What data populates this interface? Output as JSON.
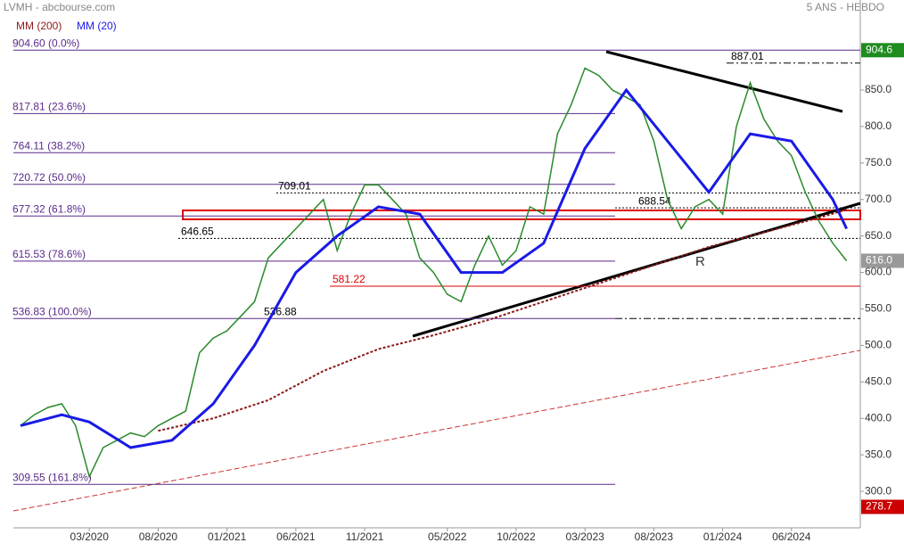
{
  "chart_data": {
    "type": "line",
    "title": "LVMH - abcbourse.com",
    "subtitle": "5 ANS - HEBDO",
    "xlim": [
      "2019-10",
      "2024-11"
    ],
    "ylim": [
      250,
      973.4
    ],
    "xticks": [
      {
        "value": "2020-03",
        "label": "03/2020"
      },
      {
        "value": "2020-08",
        "label": "08/2020"
      },
      {
        "value": "2021-01",
        "label": "01/2021"
      },
      {
        "value": "2021-06",
        "label": "06/2021"
      },
      {
        "value": "2021-11",
        "label": "11/2021"
      },
      {
        "value": "2022-05",
        "label": "05/2022"
      },
      {
        "value": "2022-10",
        "label": "10/2022"
      },
      {
        "value": "2023-03",
        "label": "03/2023"
      },
      {
        "value": "2023-08",
        "label": "08/2023"
      },
      {
        "value": "2024-01",
        "label": "01/2024"
      },
      {
        "value": "2024-06",
        "label": "06/2024"
      }
    ],
    "yticks": [
      {
        "value": 300,
        "label": "300.0"
      },
      {
        "value": 350,
        "label": "350.0"
      },
      {
        "value": 400,
        "label": "400.0"
      },
      {
        "value": 450,
        "label": "450.0"
      },
      {
        "value": 500,
        "label": "500.0"
      },
      {
        "value": 550,
        "label": "550.0"
      },
      {
        "value": 600,
        "label": "600.0"
      },
      {
        "value": 650,
        "label": "650.0"
      },
      {
        "value": 700,
        "label": "700.0"
      },
      {
        "value": 750,
        "label": "750.0"
      },
      {
        "value": 800,
        "label": "800.0"
      },
      {
        "value": 850,
        "label": "850.0"
      }
    ],
    "series": [
      {
        "name": "LVMH",
        "color": "#2a8a2a",
        "x": [
          "2019-10",
          "2019-11",
          "2019-12",
          "2020-01",
          "2020-02",
          "2020-03",
          "2020-04",
          "2020-05",
          "2020-06",
          "2020-07",
          "2020-08",
          "2020-09",
          "2020-10",
          "2020-11",
          "2020-12",
          "2021-01",
          "2021-02",
          "2021-03",
          "2021-04",
          "2021-05",
          "2021-06",
          "2021-07",
          "2021-08",
          "2021-09",
          "2021-10",
          "2021-11",
          "2021-12",
          "2022-01",
          "2022-02",
          "2022-03",
          "2022-04",
          "2022-05",
          "2022-06",
          "2022-07",
          "2022-08",
          "2022-09",
          "2022-10",
          "2022-11",
          "2022-12",
          "2023-01",
          "2023-02",
          "2023-03",
          "2023-04",
          "2023-05",
          "2023-06",
          "2023-07",
          "2023-08",
          "2023-09",
          "2023-10",
          "2023-11",
          "2023-12",
          "2024-01",
          "2024-02",
          "2024-03",
          "2024-04",
          "2024-05",
          "2024-06",
          "2024-07",
          "2024-08",
          "2024-09",
          "2024-10"
        ],
        "values": [
          390,
          405,
          415,
          420,
          390,
          320,
          360,
          370,
          380,
          375,
          390,
          400,
          410,
          490,
          510,
          520,
          540,
          560,
          620,
          640,
          660,
          680,
          700,
          630,
          680,
          720,
          720,
          700,
          680,
          620,
          600,
          570,
          560,
          610,
          650,
          610,
          630,
          690,
          680,
          790,
          830,
          880,
          870,
          850,
          840,
          830,
          780,
          700,
          660,
          690,
          700,
          680,
          800,
          860,
          810,
          780,
          760,
          710,
          670,
          640,
          616
        ]
      },
      {
        "name": "MM (200)",
        "color": "#8b1a1a",
        "x": [
          "2020-08",
          "2020-12",
          "2021-04",
          "2021-08",
          "2021-12",
          "2022-04",
          "2022-08",
          "2022-12",
          "2023-04",
          "2023-08",
          "2023-12",
          "2024-04",
          "2024-08",
          "2024-10"
        ],
        "values": [
          383,
          400,
          425,
          465,
          495,
          514,
          535,
          560,
          585,
          610,
          635,
          655,
          675,
          686
        ]
      },
      {
        "name": "MM (20)",
        "color": "#1a1ae6",
        "x": [
          "2019-10",
          "2020-01",
          "2020-03",
          "2020-06",
          "2020-09",
          "2020-12",
          "2021-03",
          "2021-06",
          "2021-09",
          "2021-12",
          "2022-03",
          "2022-06",
          "2022-09",
          "2022-12",
          "2023-03",
          "2023-06",
          "2023-09",
          "2023-12",
          "2024-03",
          "2024-06",
          "2024-09",
          "2024-10"
        ],
        "values": [
          390,
          405,
          395,
          360,
          370,
          420,
          500,
          600,
          650,
          690,
          680,
          600,
          600,
          640,
          770,
          850,
          780,
          710,
          790,
          780,
          700,
          660
        ]
      }
    ],
    "fib_levels": [
      {
        "value": 904.6,
        "label": "904.60 (0.0%)"
      },
      {
        "value": 817.81,
        "label": "817.81 (23.6%)"
      },
      {
        "value": 764.11,
        "label": "764.11 (38.2%)"
      },
      {
        "value": 720.72,
        "label": "720.72 (50.0%)"
      },
      {
        "value": 677.32,
        "label": "677.32 (61.8%)"
      },
      {
        "value": 615.53,
        "label": "615.53 (78.6%)"
      },
      {
        "value": 536.83,
        "label": "536.83 (100.0%)"
      },
      {
        "value": 309.55,
        "label": "309.55 (161.8%)"
      }
    ],
    "levels": [
      887.01,
      709.01,
      688.54,
      646.65,
      581.22,
      536.88
    ],
    "annotation": "R",
    "last_price": {
      "value": 616,
      "label": "616.0"
    },
    "high_price": 904.6,
    "low_price": 278.7
  }
}
